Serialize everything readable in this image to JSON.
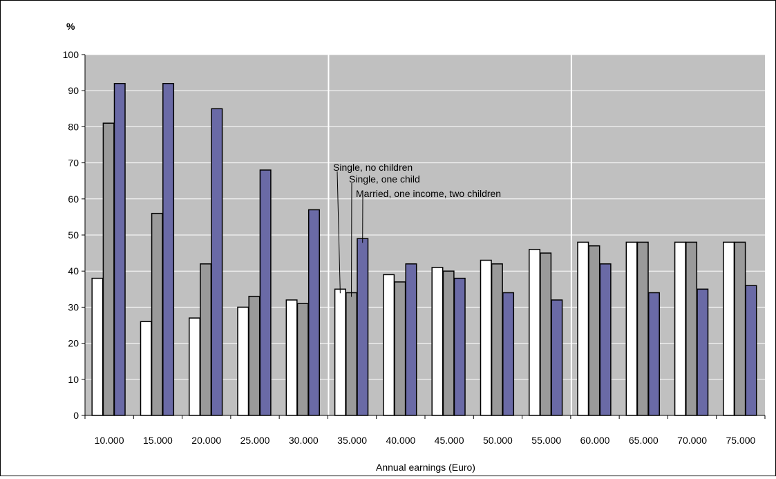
{
  "chart_data": {
    "type": "bar",
    "ylabel": "%",
    "xlabel": "Annual earnings (Euro)",
    "ylim": [
      0,
      100
    ],
    "yticks": [
      0,
      10,
      20,
      30,
      40,
      50,
      60,
      70,
      80,
      90,
      100
    ],
    "categories": [
      "10.000",
      "15.000",
      "20.000",
      "25.000",
      "30.000",
      "35.000",
      "40.000",
      "45.000",
      "50.000",
      "55.000",
      "60.000",
      "65.000",
      "70.000",
      "75.000"
    ],
    "series": [
      {
        "name": "Single, no children",
        "color": "#ffffff",
        "values": [
          38,
          26,
          27,
          30,
          32,
          35,
          39,
          41,
          43,
          46,
          48,
          48,
          48,
          48
        ]
      },
      {
        "name": "Single, one child",
        "color": "#9a9a9a",
        "values": [
          81,
          56,
          42,
          33,
          31,
          34,
          37,
          40,
          42,
          45,
          47,
          48,
          48,
          48
        ]
      },
      {
        "name": "Married, one income, two children",
        "color": "#6a6aa6",
        "values": [
          92,
          92,
          85,
          68,
          57,
          49,
          42,
          38,
          34,
          32,
          42,
          34,
          35,
          36
        ]
      }
    ],
    "plot_background": "#c0c0c0",
    "grid": true,
    "grid_color": "#ffffff",
    "group_separators_after": [
      "30.000",
      "55.000"
    ],
    "legend": "annotation labels with leader lines at 35.000"
  }
}
